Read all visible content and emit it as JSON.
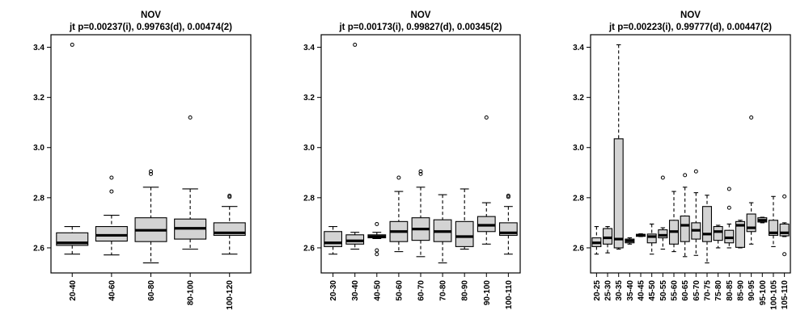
{
  "chart_data": [
    {
      "type": "boxplot",
      "title": "NOV",
      "subtitle": "jt p=0.00237(i), 0.99763(d), 0.00474(2)",
      "ylim": [
        2.5,
        3.45
      ],
      "yticks": [
        "2.6",
        "2.8",
        "3.0",
        "3.2",
        "3.4"
      ],
      "box_fill": "#d3d3d3",
      "categories": [
        "20-40",
        "40-60",
        "60-80",
        "80-100",
        "100-120"
      ],
      "series": [
        {
          "min": 2.575,
          "q1": 2.61,
          "median": 2.62,
          "q3": 2.66,
          "max": 2.685,
          "outliers": [
            3.41
          ]
        },
        {
          "min": 2.572,
          "q1": 2.627,
          "median": 2.65,
          "q3": 2.685,
          "max": 2.73,
          "outliers": [
            2.825,
            2.88
          ]
        },
        {
          "min": 2.54,
          "q1": 2.625,
          "median": 2.67,
          "q3": 2.72,
          "max": 2.842,
          "outliers": [
            2.895,
            2.905
          ]
        },
        {
          "min": 2.595,
          "q1": 2.635,
          "median": 2.678,
          "q3": 2.715,
          "max": 2.835,
          "outliers": [
            3.12
          ]
        },
        {
          "min": 2.575,
          "q1": 2.65,
          "median": 2.66,
          "q3": 2.7,
          "max": 2.765,
          "outliers": [
            2.803,
            2.808
          ]
        }
      ]
    },
    {
      "type": "boxplot",
      "title": "NOV",
      "subtitle": "jt p=0.00173(i), 0.99827(d), 0.00345(2)",
      "ylim": [
        2.5,
        3.45
      ],
      "yticks": [
        "2.6",
        "2.8",
        "3.0",
        "3.2",
        "3.4"
      ],
      "box_fill": "#d3d3d3",
      "categories": [
        "20-30",
        "30-40",
        "40-50",
        "50-60",
        "60-70",
        "70-80",
        "80-90",
        "90-100",
        "100-110"
      ],
      "series": [
        {
          "min": 2.575,
          "q1": 2.605,
          "median": 2.62,
          "q3": 2.665,
          "max": 2.685,
          "outliers": []
        },
        {
          "min": 2.595,
          "q1": 2.615,
          "median": 2.628,
          "q3": 2.652,
          "max": 2.662,
          "outliers": [
            3.41
          ]
        },
        {
          "min": 2.637,
          "q1": 2.64,
          "median": 2.645,
          "q3": 2.652,
          "max": 2.662,
          "outliers": [
            2.575,
            2.59,
            2.695
          ]
        },
        {
          "min": 2.585,
          "q1": 2.625,
          "median": 2.665,
          "q3": 2.705,
          "max": 2.825,
          "outliers": [
            2.88
          ]
        },
        {
          "min": 2.565,
          "q1": 2.63,
          "median": 2.675,
          "q3": 2.72,
          "max": 2.842,
          "outliers": [
            2.895,
            2.905
          ]
        },
        {
          "min": 2.54,
          "q1": 2.625,
          "median": 2.665,
          "q3": 2.712,
          "max": 2.812,
          "outliers": []
        },
        {
          "min": 2.595,
          "q1": 2.605,
          "median": 2.645,
          "q3": 2.705,
          "max": 2.835,
          "outliers": []
        },
        {
          "min": 2.615,
          "q1": 2.665,
          "median": 2.69,
          "q3": 2.725,
          "max": 2.78,
          "outliers": [
            3.12
          ]
        },
        {
          "min": 2.575,
          "q1": 2.65,
          "median": 2.66,
          "q3": 2.7,
          "max": 2.765,
          "outliers": [
            2.803,
            2.808
          ]
        }
      ]
    },
    {
      "type": "boxplot",
      "title": "NOV",
      "subtitle": "jt p=0.00223(i), 0.99777(d), 0.00447(2)",
      "ylim": [
        2.5,
        3.45
      ],
      "yticks": [
        "2.6",
        "2.8",
        "3.0",
        "3.2",
        "3.4"
      ],
      "box_fill": "#d3d3d3",
      "categories": [
        "20-25",
        "25-30",
        "30-35",
        "35-40",
        "40-45",
        "45-50",
        "50-55",
        "55-60",
        "60-65",
        "65-70",
        "70-75",
        "75-80",
        "80-85",
        "85-90",
        "90-95",
        "95-100",
        "100-105",
        "105-110"
      ],
      "series": [
        {
          "min": 2.575,
          "q1": 2.605,
          "median": 2.62,
          "q3": 2.64,
          "max": 2.685,
          "outliers": []
        },
        {
          "min": 2.58,
          "q1": 2.615,
          "median": 2.64,
          "q3": 2.677,
          "max": 2.685,
          "outliers": []
        },
        {
          "min": 2.595,
          "q1": 2.6,
          "median": 2.635,
          "q3": 3.035,
          "max": 3.41,
          "outliers": []
        },
        {
          "min": 2.615,
          "q1": 2.62,
          "median": 2.628,
          "q3": 2.635,
          "max": 2.64,
          "outliers": []
        },
        {
          "min": 2.645,
          "q1": 2.646,
          "median": 2.65,
          "q3": 2.654,
          "max": 2.656,
          "outliers": []
        },
        {
          "min": 2.575,
          "q1": 2.62,
          "median": 2.645,
          "q3": 2.655,
          "max": 2.695,
          "outliers": []
        },
        {
          "min": 2.595,
          "q1": 2.64,
          "median": 2.65,
          "q3": 2.672,
          "max": 2.68,
          "outliers": [
            2.88
          ]
        },
        {
          "min": 2.585,
          "q1": 2.615,
          "median": 2.665,
          "q3": 2.71,
          "max": 2.825,
          "outliers": []
        },
        {
          "min": 2.565,
          "q1": 2.625,
          "median": 2.69,
          "q3": 2.727,
          "max": 2.842,
          "outliers": [
            2.89
          ]
        },
        {
          "min": 2.57,
          "q1": 2.635,
          "median": 2.67,
          "q3": 2.7,
          "max": 2.82,
          "outliers": [
            2.905
          ]
        },
        {
          "min": 2.54,
          "q1": 2.625,
          "median": 2.655,
          "q3": 2.765,
          "max": 2.81,
          "outliers": []
        },
        {
          "min": 2.6,
          "q1": 2.63,
          "median": 2.665,
          "q3": 2.685,
          "max": 2.69,
          "outliers": []
        },
        {
          "min": 2.6,
          "q1": 2.62,
          "median": 2.64,
          "q3": 2.67,
          "max": 2.695,
          "outliers": [
            2.835,
            2.76
          ]
        },
        {
          "min": 2.6,
          "q1": 2.602,
          "median": 2.69,
          "q3": 2.705,
          "max": 2.71,
          "outliers": []
        },
        {
          "min": 2.615,
          "q1": 2.665,
          "median": 2.68,
          "q3": 2.735,
          "max": 2.78,
          "outliers": [
            3.12
          ]
        },
        {
          "min": 2.7,
          "q1": 2.703,
          "median": 2.71,
          "q3": 2.72,
          "max": 2.722,
          "outliers": []
        },
        {
          "min": 2.605,
          "q1": 2.65,
          "median": 2.66,
          "q3": 2.71,
          "max": 2.805,
          "outliers": []
        },
        {
          "min": 2.645,
          "q1": 2.648,
          "median": 2.66,
          "q3": 2.695,
          "max": 2.7,
          "outliers": [
            2.575,
            2.805
          ]
        }
      ]
    }
  ]
}
